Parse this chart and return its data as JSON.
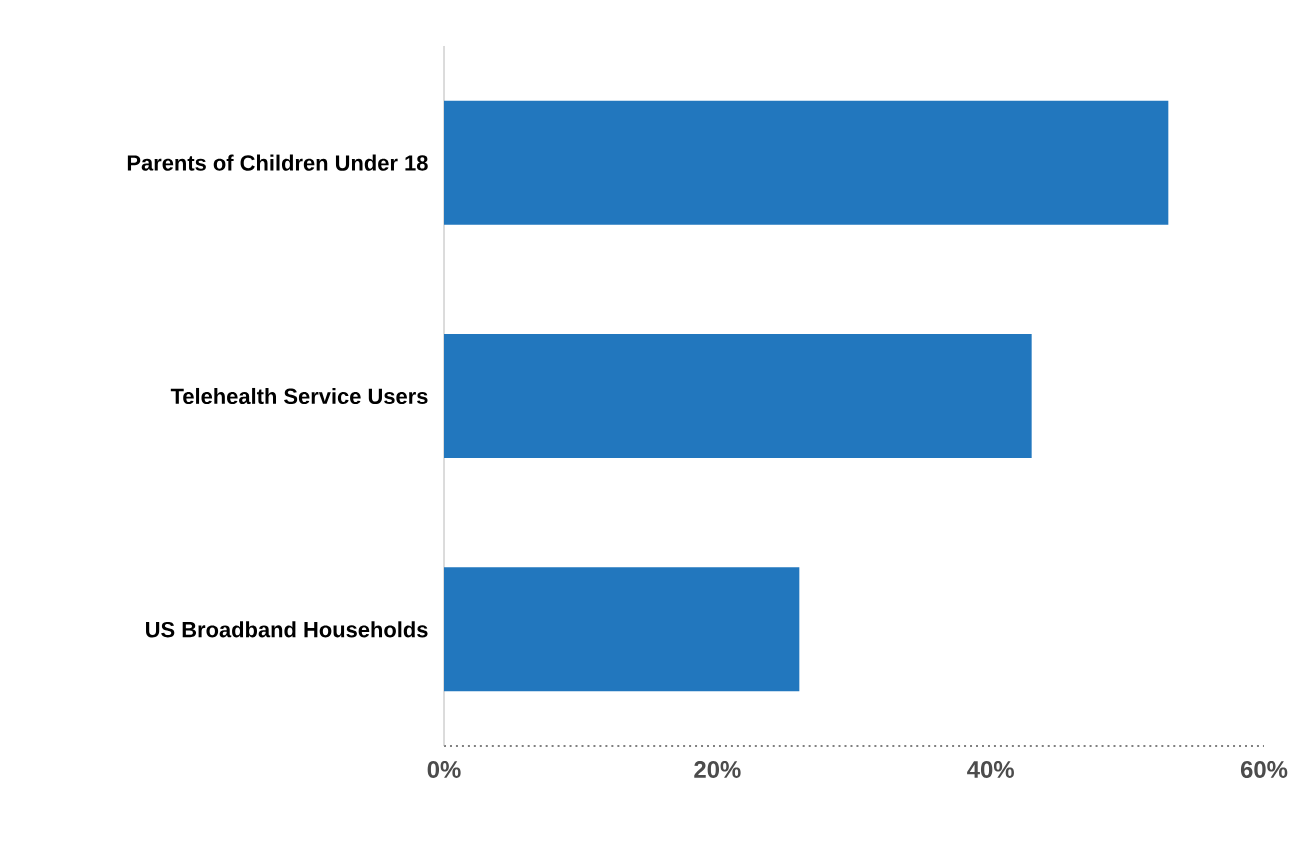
{
  "chart_data": {
    "type": "bar",
    "orientation": "horizontal",
    "categories": [
      "Parents of Children Under 18",
      "Telehealth Service Users",
      "US Broadband Households"
    ],
    "values": [
      53,
      43,
      26
    ],
    "color": "#2277be",
    "xlim": [
      0,
      60
    ],
    "xticks": [
      {
        "value": 0,
        "label": "0%"
      },
      {
        "value": 20,
        "label": "20%"
      },
      {
        "value": 40,
        "label": "40%"
      },
      {
        "value": 60,
        "label": "60%"
      }
    ],
    "grid": false
  }
}
